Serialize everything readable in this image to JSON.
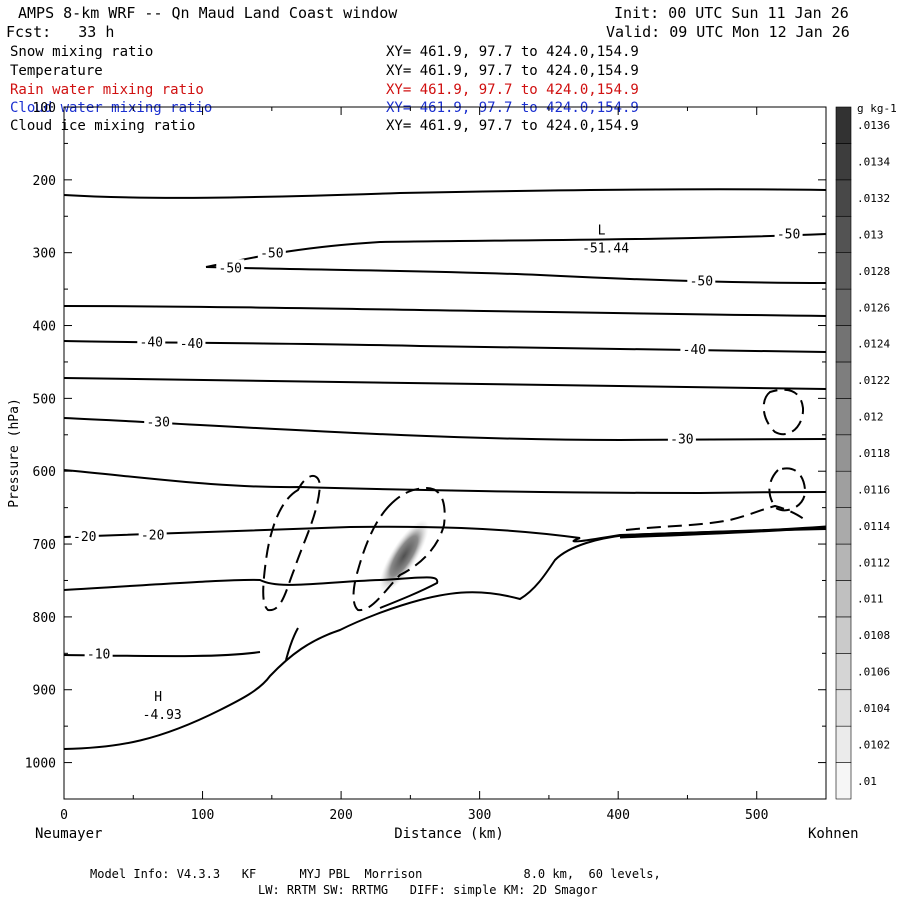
{
  "header": {
    "title": "AMPS 8-km WRF -- Qn Maud Land Coast window",
    "init": "Init: 00 UTC Sun 11 Jan 26",
    "fcst": "Fcst:   33 h",
    "valid": "Valid: 09 UTC Mon 12 Jan 26"
  },
  "fields": [
    {
      "name": "Snow mixing ratio",
      "xy": "XY= 461.9, 97.7 to 424.0,154.9",
      "color": "#000000"
    },
    {
      "name": "Temperature",
      "xy": "XY= 461.9, 97.7 to 424.0,154.9",
      "color": "#000000"
    },
    {
      "name": "Rain water mixing ratio",
      "xy": "XY= 461.9, 97.7 to 424.0,154.9",
      "color": "#d01010"
    },
    {
      "name": "Cloud water mixing ratio",
      "xy": "XY= 461.9, 97.7 to 424.0,154.9",
      "color": "#1a2fd0"
    },
    {
      "name": "Cloud ice mixing ratio",
      "xy": "XY= 461.9, 97.7 to 424.0,154.9",
      "color": "#000000"
    }
  ],
  "footer": {
    "line1": "Model Info: V4.3.3   KF      MYJ PBL  Morrison              8.0 km,  60 levels,",
    "line2": "LW: RRTM SW: RRTMG   DIFF: simple KM: 2D Smagor"
  },
  "chart_data": {
    "type": "cross-section contour",
    "xlabel": "Distance (km)",
    "ylabel": "Pressure (hPa)",
    "xlim": [
      0,
      550
    ],
    "ylim": [
      1050,
      100
    ],
    "xticks": [
      "0",
      "100",
      "200",
      "300",
      "400",
      "500"
    ],
    "yticks": [
      "100",
      "200",
      "300",
      "400",
      "500",
      "600",
      "700",
      "800",
      "900",
      "1000"
    ],
    "x_endpoints": {
      "left": "Neumayer",
      "right": "Kohnen"
    },
    "colorbar": {
      "unit": "g kg-1",
      "labels": [
        ".01",
        ".0102",
        ".0104",
        ".0106",
        ".0108",
        ".011",
        ".0112",
        ".0114",
        ".0116",
        ".0118",
        ".012",
        ".0122",
        ".0124",
        ".0126",
        ".0128",
        ".013",
        ".0132",
        ".0134",
        ".0136"
      ]
    },
    "temperature_labels": [
      {
        "text": "-50",
        "x": 150,
        "p": 300
      },
      {
        "text": "-50",
        "x": 120,
        "p": 320
      },
      {
        "text": "-50",
        "x": 460,
        "p": 338
      },
      {
        "text": "-50",
        "x": 523,
        "p": 274
      },
      {
        "text": "-40",
        "x": 63,
        "p": 422
      },
      {
        "text": "-40",
        "x": 92,
        "p": 424
      },
      {
        "text": "-40",
        "x": 455,
        "p": 432
      },
      {
        "text": "-30",
        "x": 68,
        "p": 532
      },
      {
        "text": "-30",
        "x": 446,
        "p": 555
      },
      {
        "text": "-20",
        "x": 15,
        "p": 689
      },
      {
        "text": "-20",
        "x": 64,
        "p": 687
      },
      {
        "text": "-10",
        "x": 25,
        "p": 850
      }
    ],
    "extrema": [
      {
        "symbol": "L",
        "value": "-51.44",
        "x": 388,
        "p": 300
      },
      {
        "symbol": "H",
        "value": "-4.93",
        "x": 68,
        "p": 940
      }
    ]
  }
}
